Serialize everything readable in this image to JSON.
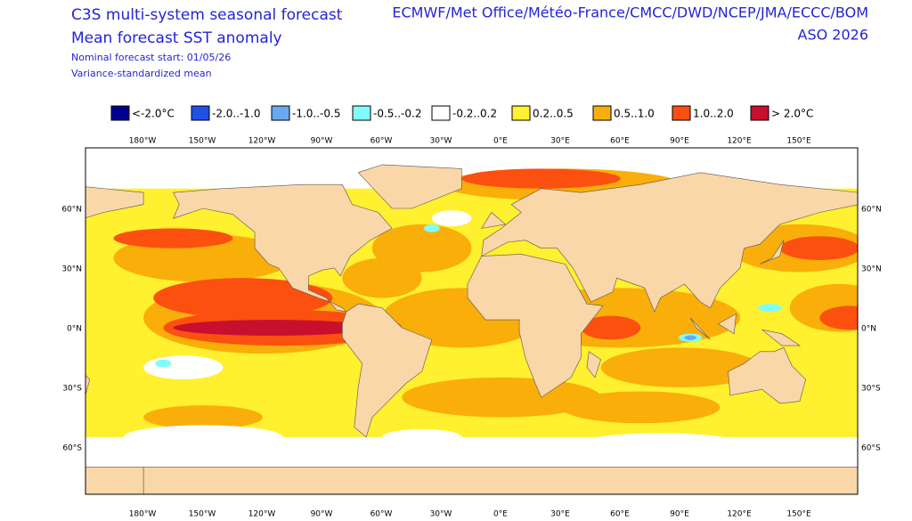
{
  "header": {
    "title_left": [
      "C3S multi-system seasonal forecast",
      "Mean forecast SST anomaly"
    ],
    "notes": [
      "Nominal forecast start: 01/05/26",
      "Variance-standardized mean"
    ],
    "title_right": [
      "ECMWF/Met Office/Météo-France/CMCC/DWD/NCEP/JMA/ECCC/BOM",
      "ASO 2026"
    ]
  },
  "legend": [
    {
      "label": "<-2.0°C",
      "color": "#000090"
    },
    {
      "label": "-2.0..-1.0",
      "color": "#2050e8"
    },
    {
      "label": "-1.0..-0.5",
      "color": "#6aa8f2"
    },
    {
      "label": "-0.5..-0.2",
      "color": "#80fcfc"
    },
    {
      "label": "-0.2..0.2",
      "color": "#ffffff"
    },
    {
      "label": "0.2..0.5",
      "color": "#fff030"
    },
    {
      "label": "0.5..1.0",
      "color": "#faae0a"
    },
    {
      "label": "1.0..2.0",
      "color": "#fb5010"
    },
    {
      "label": "> 2.0°C",
      "color": "#c8102e"
    }
  ],
  "longitudes": [
    "180°W",
    "150°W",
    "120°W",
    "90°W",
    "60°W",
    "30°W",
    "0°E",
    "30°E",
    "60°E",
    "90°E",
    "120°E",
    "150°E"
  ],
  "latitudes": [
    "60°N",
    "30°N",
    "0°N",
    "30°S",
    "60°S"
  ]
}
